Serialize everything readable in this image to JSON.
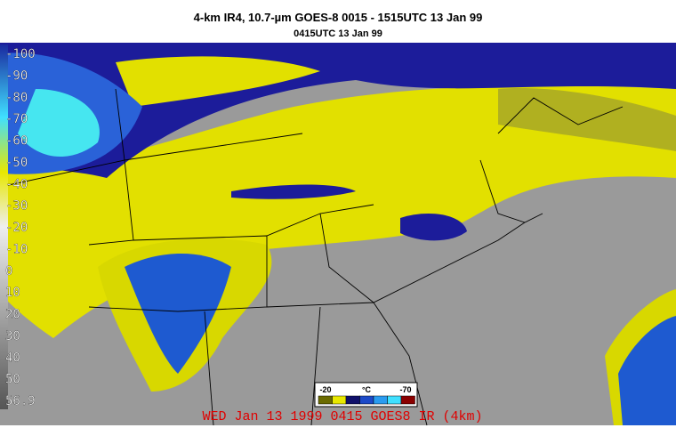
{
  "header": {
    "title": "4-km IR4, 10.7-µm GOES-8 0015 - 1515UTC 13 Jan 99",
    "subtitle": "0415UTC 13 Jan 99"
  },
  "scale": {
    "labels": [
      "-100",
      "-90",
      "-80",
      "-70",
      "-60",
      "-50",
      "-40",
      "-30",
      "-20",
      "-10",
      "0",
      "10",
      "20",
      "30",
      "40",
      "50",
      "56.9"
    ]
  },
  "legend": {
    "min_label": "-20",
    "unit": "°C",
    "max_label": "-70"
  },
  "footer": {
    "stamp": "WED Jan 13 1999 0415 GOES8 IR (4km)"
  }
}
